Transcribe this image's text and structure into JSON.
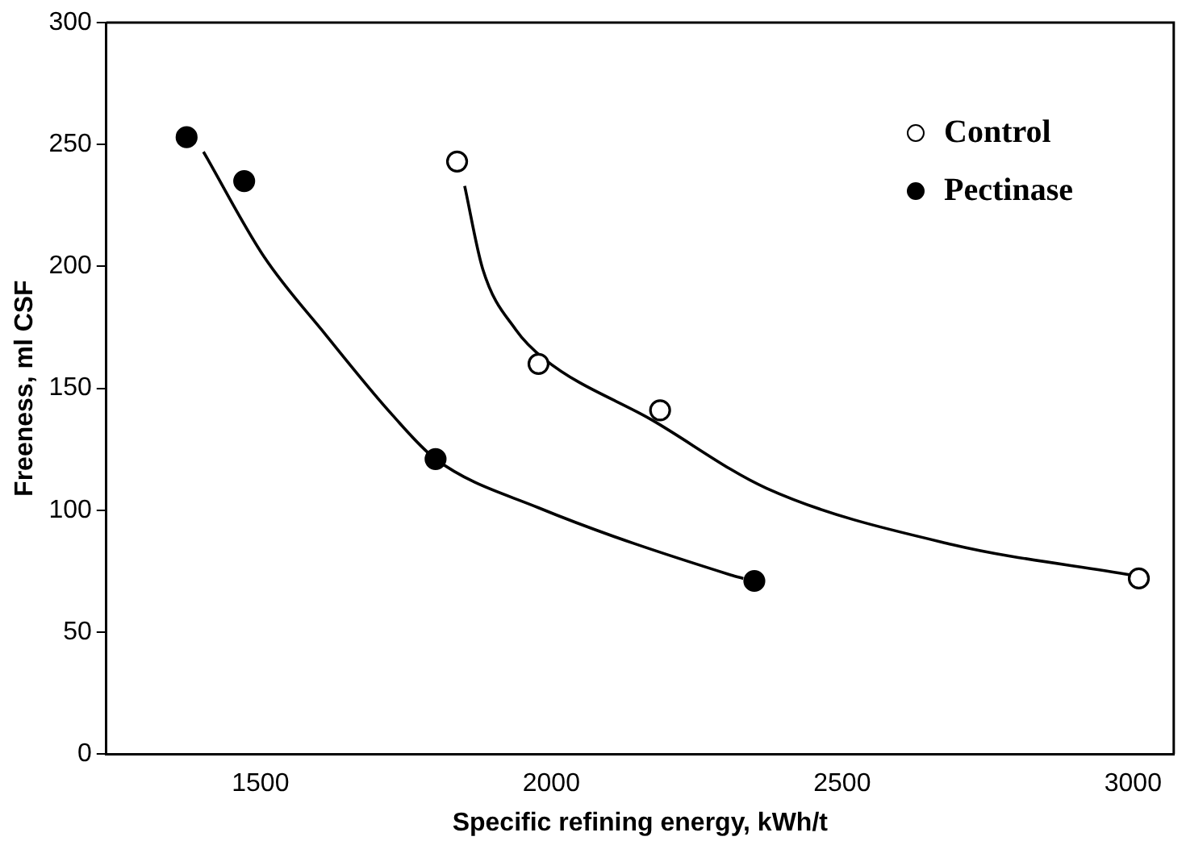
{
  "chart_data": {
    "type": "scatter",
    "xlabel": "Specific refining energy, kWh/t",
    "ylabel": "Freeness, ml CSF",
    "xlim": [
      1235,
      3070
    ],
    "xticks": [
      1500,
      2000,
      2500,
      3000
    ],
    "ylim": [
      0,
      300
    ],
    "yticks": [
      0,
      50,
      100,
      150,
      200,
      250,
      300
    ],
    "grid": false,
    "legend": "top right",
    "marker": "circle",
    "series": [
      {
        "name": "Control",
        "color": "#ffffff",
        "x": [
          1838,
          1978,
          2187,
          3010
        ],
        "values": [
          243,
          160,
          141,
          72
        ]
      },
      {
        "name": "Pectinase",
        "color": "#000000",
        "x": [
          1373,
          1472,
          1801,
          2349
        ],
        "values": [
          253,
          235,
          121,
          71
        ]
      },
      {
        "type": "line",
        "color": "#000000",
        "marker": "none",
        "x": [
          1851,
          1882,
          1939,
          1988,
          2173,
          2370,
          2688,
          2996
        ],
        "values": [
          233,
          199,
          174,
          162,
          137,
          109,
          86,
          73.5
        ]
      },
      {
        "type": "line",
        "color": "#000000",
        "marker": "none",
        "x": [
          1402,
          1506,
          1612,
          1727,
          1801,
          1978,
          2309,
          2330
        ],
        "values": [
          247,
          204,
          172,
          139,
          121,
          101,
          73.4,
          72
        ]
      }
    ]
  }
}
